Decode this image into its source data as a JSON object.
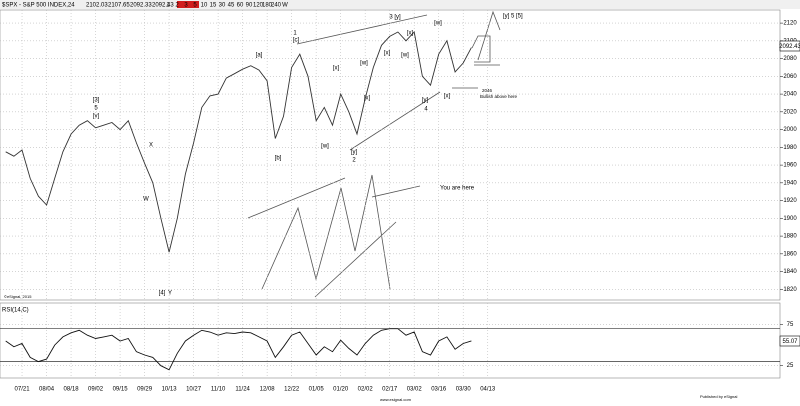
{
  "header": {
    "title": "$SPX - S&P 500 INDEX,24",
    "ohlc": [
      2102.03,
      2107.65,
      2092.33,
      2092.43
    ]
  },
  "toolbar": [
    "1",
    "2",
    "3",
    "5",
    "10",
    "15",
    "30",
    "45",
    "60",
    "90",
    "120",
    "180",
    "240",
    "W"
  ],
  "footer": {
    "copyright": "©eSignal, 2015",
    "publisher": "Published by eSignal",
    "site": "www.esignal.com"
  },
  "chart_data": [
    {
      "type": "line",
      "color": "#333333",
      "categories": [
        null,
        null,
        "07/21",
        null,
        null,
        "08/04",
        null,
        null,
        "08/18",
        null,
        null,
        "09/02",
        null,
        null,
        "09/15",
        null,
        null,
        "09/29",
        null,
        null,
        "10/13",
        null,
        null,
        "10/27",
        null,
        null,
        "11/10",
        null,
        null,
        "11/24",
        null,
        null,
        "12/08",
        null,
        null,
        "12/22",
        null,
        null,
        "01/05",
        null,
        null,
        "01/20",
        null,
        null,
        "02/02",
        null,
        null,
        "02/17",
        null,
        null,
        "03/02",
        null,
        null,
        "03/16",
        null,
        null,
        "03/30",
        null,
        null,
        "04/13"
      ],
      "values": [
        1975,
        1970,
        1977,
        1945,
        1925,
        1915,
        1945,
        1975,
        1995,
        2005,
        2010,
        2002,
        2005,
        2008,
        2000,
        2010,
        1985,
        1962,
        1940,
        1900,
        1862,
        1900,
        1950,
        1985,
        2025,
        2038,
        2040,
        2058,
        2063,
        2068,
        2072,
        2067,
        2055,
        1990,
        2015,
        2070,
        2085,
        2060,
        2010,
        2025,
        2005,
        2040,
        2020,
        1995,
        2035,
        2070,
        2095,
        2105,
        2110,
        2100,
        2110,
        2060,
        2050,
        2085,
        2100,
        2065,
        2075,
        2092.43,
        null,
        null
      ],
      "ylim": [
        1808,
        2137
      ],
      "yticks": [
        1820,
        1840,
        1860,
        1880,
        1900,
        1920,
        1940,
        1960,
        1980,
        2000,
        2020,
        2040,
        2060,
        2080,
        2100,
        2120
      ],
      "grid": true,
      "annotations": [
        "[3]",
        "5",
        "[v]",
        "X",
        "W",
        "[4]",
        "Y",
        "[a]",
        "1",
        "[c]",
        "[b]",
        "[x]",
        "[w]",
        "[y]",
        "2",
        "[w]",
        "[x]",
        "[x]",
        "3 [y]",
        "[w]",
        "[x]",
        "[w]",
        "[y]",
        "4",
        "[x]",
        "2046",
        "Bullish above here",
        "[y] 5 [5]",
        "You are here"
      ]
    },
    {
      "type": "line",
      "title": "RSI(14,C)",
      "color": "#111111",
      "values": [
        55,
        48,
        52,
        35,
        30,
        33,
        50,
        60,
        65,
        68,
        62,
        58,
        60,
        62,
        55,
        58,
        42,
        38,
        35,
        25,
        20,
        40,
        55,
        62,
        68,
        66,
        62,
        65,
        64,
        66,
        65,
        60,
        55,
        35,
        48,
        62,
        66,
        52,
        38,
        48,
        42,
        56,
        46,
        38,
        52,
        62,
        68,
        70,
        70,
        62,
        66,
        42,
        38,
        55,
        60,
        45,
        52,
        55.07,
        null,
        null
      ],
      "ylim": [
        10,
        100
      ],
      "yticks": [
        25,
        75
      ]
    }
  ]
}
